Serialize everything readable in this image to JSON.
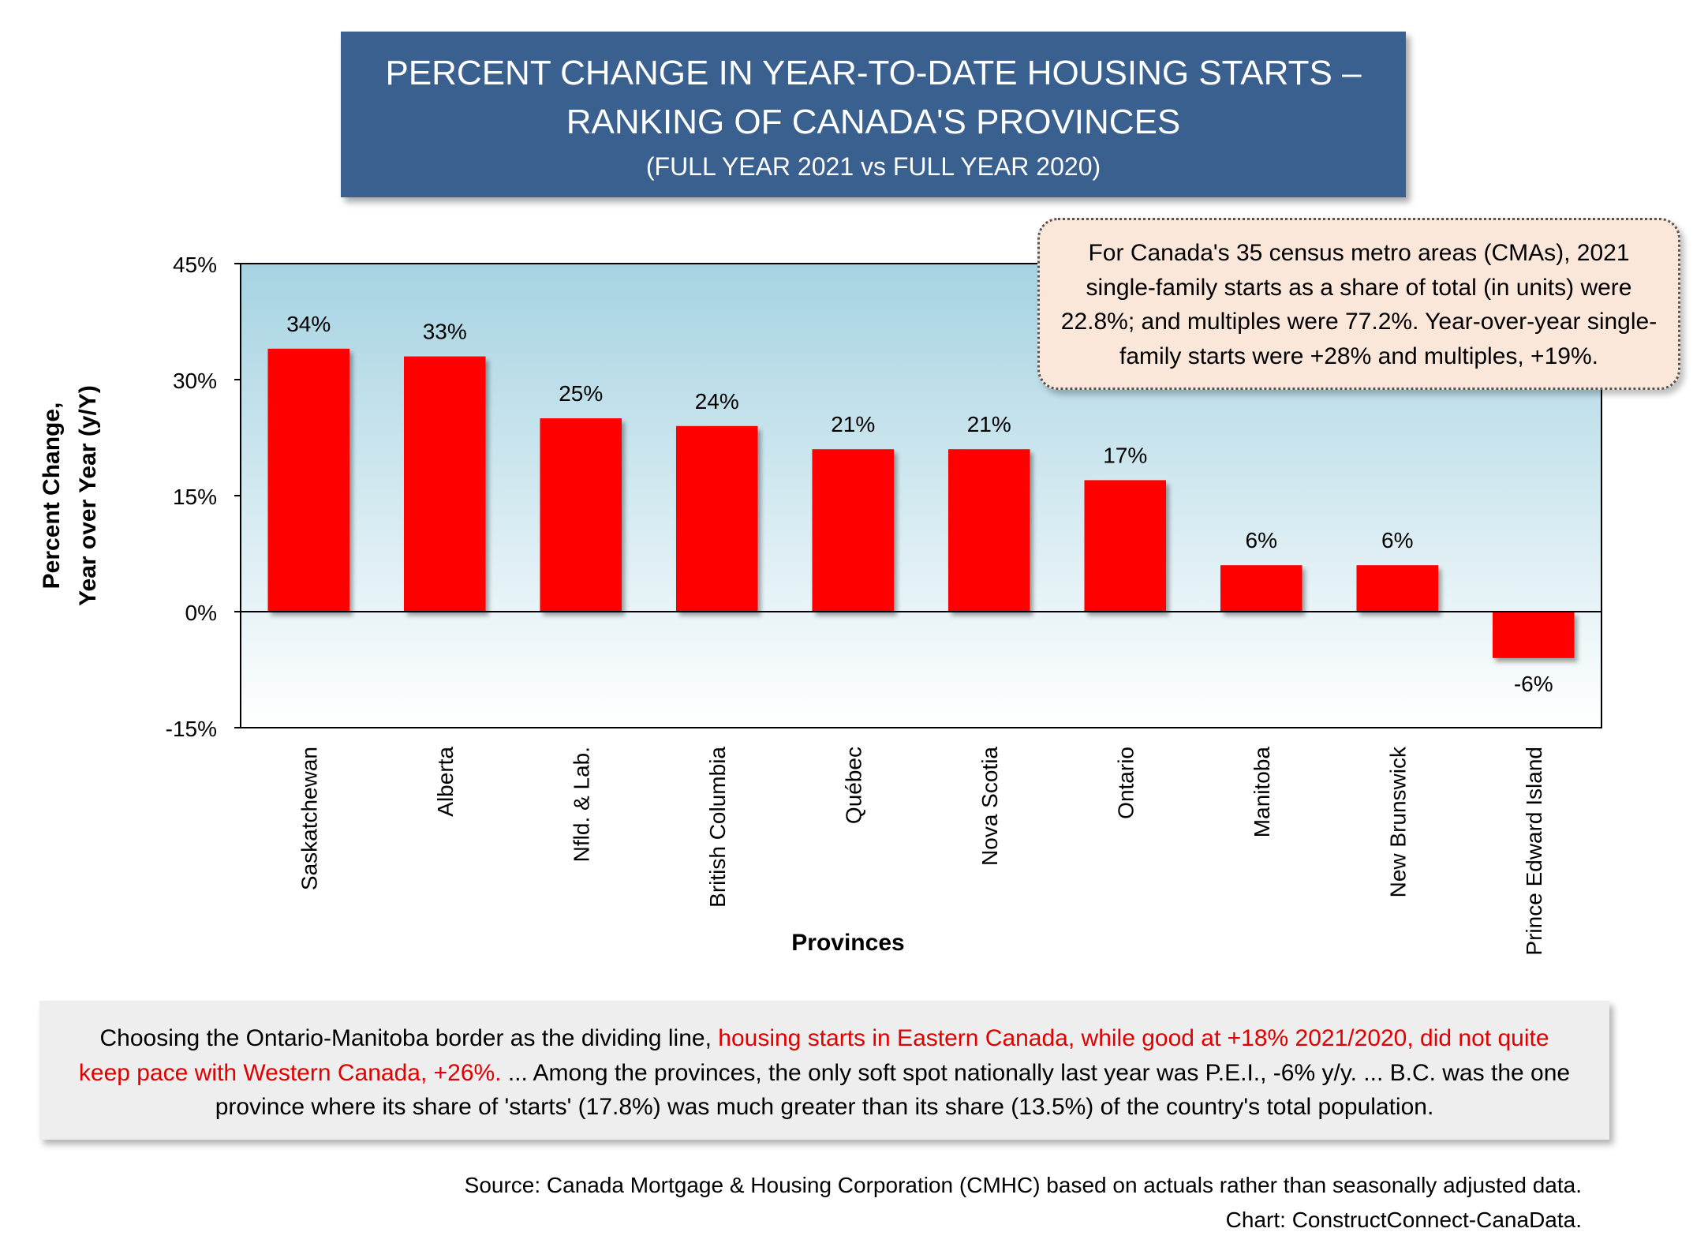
{
  "title": {
    "line1": "PERCENT CHANGE IN YEAR-TO-DATE HOUSING STARTS –",
    "line2": "RANKING OF CANADA'S PROVINCES",
    "subtitle": "(FULL YEAR 2021 vs FULL YEAR 2020)"
  },
  "note": "For Canada's 35 census metro areas (CMAs), 2021 single-family starts as a share of total (in units) were 22.8%; and multiples were 77.2%. Year-over-year single-family starts were +28% and multiples, +19%.",
  "comment": {
    "part1": "Choosing the Ontario-Manitoba border as the dividing line, ",
    "highlight": "housing starts in Eastern Canada, while good at +18% 2021/2020, did not quite keep pace with Western Canada, +26%.",
    "part2": " ... Among the provinces, the only soft spot nationally last year was P.E.I., -6% y/y. ... B.C. was the one province where its share of 'starts' (17.8%) was much greater than its share (13.5%) of the country's total population."
  },
  "source": {
    "line1": "Source: Canada Mortgage & Housing Corporation (CMHC) based on actuals rather than seasonally adjusted data.",
    "line2": "Chart: ConstructConnect-CanaData."
  },
  "colors": {
    "title_bg": "#3a6090",
    "bar": "#ff0000",
    "highlight_text": "#e00000",
    "plot_gradient_top": "#a6d3e2",
    "plot_gradient_bottom": "#ffffff",
    "note_bg": "#fbe7d9"
  },
  "chart_data": {
    "type": "bar",
    "categories": [
      "Saskatchewan",
      "Alberta",
      "Nfld. & Lab.",
      "British Columbia",
      "Québec",
      "Nova Scotia",
      "Ontario",
      "Manitoba",
      "New Brunswick",
      "Prince Edward Island"
    ],
    "values": [
      34,
      33,
      25,
      24,
      21,
      21,
      17,
      6,
      6,
      -6
    ],
    "data_labels": [
      "34%",
      "33%",
      "25%",
      "24%",
      "21%",
      "21%",
      "17%",
      "6%",
      "6%",
      "-6%"
    ],
    "xlabel": "Provinces",
    "ylabel_line1": "Percent Change,",
    "ylabel_line2": "Year over Year (y/Y)",
    "ylim": [
      -15,
      45
    ],
    "yticks": [
      45,
      30,
      15,
      0,
      -15
    ],
    "ytick_labels": [
      "45%",
      "30%",
      "15%",
      "0%",
      "-15%"
    ],
    "grid": false,
    "legend": "none"
  }
}
